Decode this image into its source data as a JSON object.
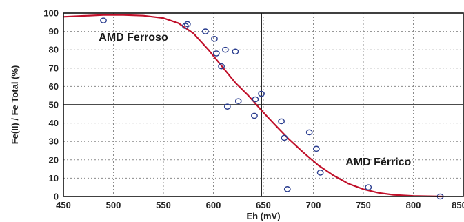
{
  "chart_data": {
    "type": "scatter",
    "xlabel": "Eh (mV)",
    "ylabel": "Fe(II) / Fe Total  (%)",
    "xlim": [
      450,
      830
    ],
    "ylim": [
      0,
      100
    ],
    "x_ticks": [
      "450",
      "500",
      "550",
      "600",
      "650",
      "700",
      "750",
      "800",
      "850"
    ],
    "y_ticks": [
      "0",
      "10",
      "20",
      "30",
      "40",
      "50",
      "60",
      "70",
      "80",
      "90",
      "100"
    ],
    "grid": true,
    "reference_lines": {
      "x": 648,
      "y": 50
    },
    "annotations": [
      {
        "text": "AMD Ferroso",
        "x": 520,
        "y": 85
      },
      {
        "text": "AMD Férrico",
        "x": 765,
        "y": 17
      }
    ],
    "colors": {
      "curve": "#c0102a",
      "points": "#2a3d8f",
      "grid": "#8a8a8a"
    },
    "series": [
      {
        "kind": "points",
        "points": [
          [
            490,
            96
          ],
          [
            572,
            93
          ],
          [
            574,
            94
          ],
          [
            592,
            90
          ],
          [
            601,
            86
          ],
          [
            603,
            78
          ],
          [
            608,
            71
          ],
          [
            612,
            80
          ],
          [
            614,
            49
          ],
          [
            622,
            79
          ],
          [
            625,
            52
          ],
          [
            641,
            44
          ],
          [
            642,
            53
          ],
          [
            648,
            56
          ],
          [
            668,
            41
          ],
          [
            671,
            32
          ],
          [
            674,
            4
          ],
          [
            696,
            35
          ],
          [
            703,
            26
          ],
          [
            707,
            13
          ],
          [
            755,
            5
          ],
          [
            827,
            0
          ]
        ]
      },
      {
        "kind": "curve",
        "points": [
          [
            450,
            98
          ],
          [
            470,
            98.5
          ],
          [
            490,
            99
          ],
          [
            510,
            99
          ],
          [
            530,
            98.6
          ],
          [
            550,
            97.3
          ],
          [
            565,
            94.5
          ],
          [
            580,
            89
          ],
          [
            595,
            80
          ],
          [
            610,
            70
          ],
          [
            622,
            62
          ],
          [
            635,
            55
          ],
          [
            648,
            47
          ],
          [
            660,
            40
          ],
          [
            675,
            31.5
          ],
          [
            690,
            24
          ],
          [
            705,
            17
          ],
          [
            720,
            11.5
          ],
          [
            735,
            7
          ],
          [
            750,
            4
          ],
          [
            765,
            2
          ],
          [
            780,
            0.9
          ],
          [
            800,
            0.3
          ],
          [
            830,
            0
          ]
        ]
      }
    ]
  }
}
